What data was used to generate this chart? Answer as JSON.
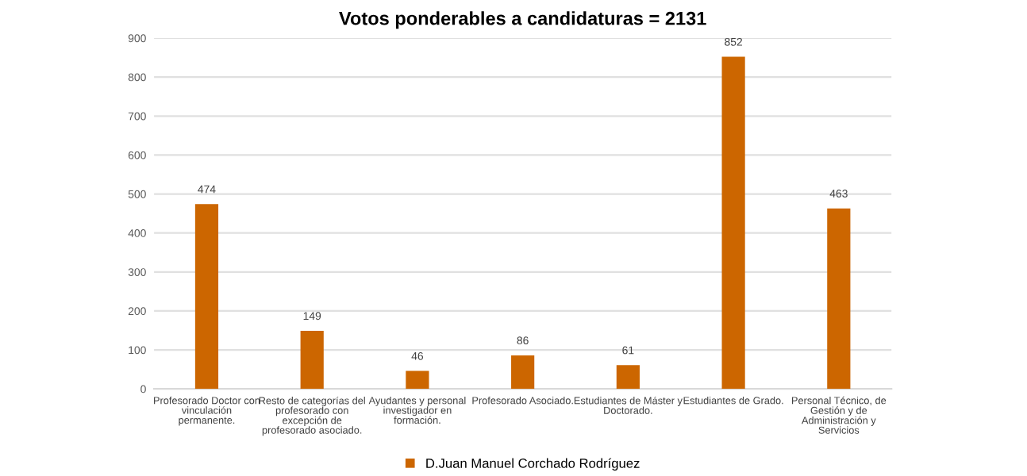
{
  "chart_data": {
    "type": "bar",
    "title": "Votos ponderables a candidaturas = 2131",
    "categories": [
      "Profesorado Doctor con\nvinculación\npermanente.",
      "Resto de categorías del\nprofesorado con\nexcepción de\nprofesorado asociado.",
      "Ayudantes y personal\ninvestigador en\nformación.",
      "Profesorado Asociado.",
      "Estudiantes de Máster y\nDoctorado.",
      "Estudiantes de Grado.",
      "Personal Técnico, de\nGestión y de\nAdministración y\nServicios"
    ],
    "series": [
      {
        "name": "D.Juan Manuel Corchado Rodríguez",
        "color": "#cc6600",
        "values": [
          474,
          149,
          46,
          86,
          61,
          852,
          463
        ]
      }
    ],
    "ylim": [
      0,
      900
    ],
    "yticks": [
      0,
      100,
      200,
      300,
      400,
      500,
      600,
      700,
      800,
      900
    ],
    "grid": "y",
    "legend": "bottom",
    "data_labels": true
  }
}
